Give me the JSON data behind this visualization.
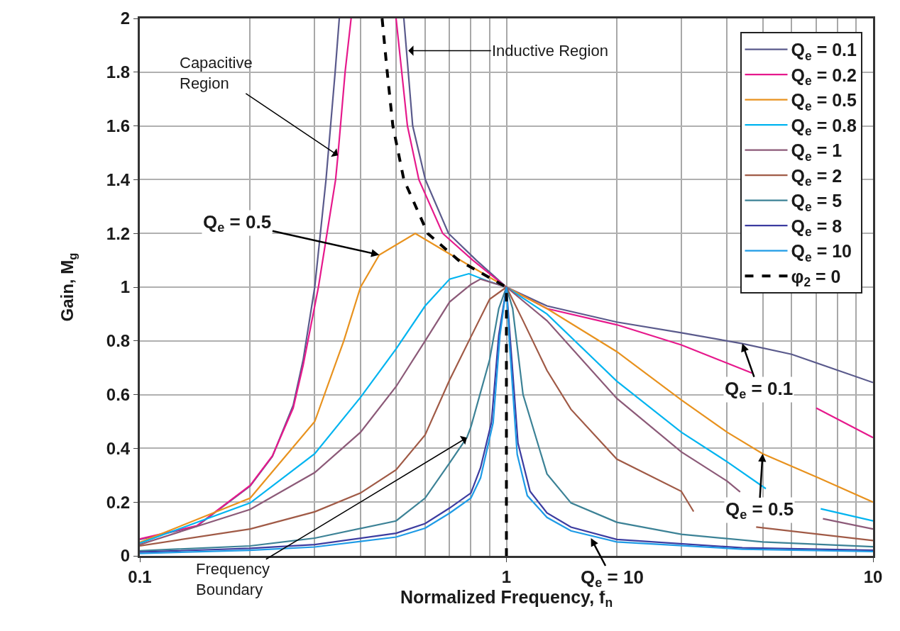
{
  "chart_data": {
    "type": "line",
    "xlabel": "Normalized Frequency, f$_{n}$",
    "ylabel": "Gain, M$_{g}$",
    "log": "x",
    "xlim": [
      0.1,
      10
    ],
    "xticks": [
      0.1,
      1,
      10
    ],
    "ylim": [
      0,
      2
    ],
    "yticks": [
      0,
      0.2,
      0.4,
      0.6,
      0.8,
      1,
      1.2,
      1.4,
      1.6,
      1.8,
      2
    ],
    "grid": true,
    "legend": "top right",
    "line_style": "solid",
    "series": [
      {
        "name": "Q$_{e}$ = 0.1",
        "color": "#5a5a8c",
        "x": [
          0.1,
          0.143,
          0.2,
          0.23,
          0.262,
          0.279,
          0.3,
          0.322,
          0.341,
          0.35,
          0.4,
          0.525,
          0.555,
          0.601,
          0.695,
          0.828,
          1,
          1.29,
          2,
          3,
          4.4,
          6,
          10
        ],
        "values": [
          0.061,
          0.11,
          0.26,
          0.37,
          0.56,
          0.73,
          1.0,
          1.4,
          1.8,
          2,
          null,
          2,
          1.6,
          1.4,
          1.2,
          1.1,
          1,
          0.93,
          0.87,
          0.83,
          0.79,
          0.75,
          0.645
        ]
      },
      {
        "name": "Q$_{e}$ = 0.2",
        "color": "#e6198c",
        "x": [
          0.1,
          0.143,
          0.2,
          0.23,
          0.262,
          0.279,
          0.307,
          0.342,
          0.347,
          0.363,
          0.377,
          0.4,
          0.5,
          0.537,
          0.577,
          0.67,
          0.81,
          1,
          1.29,
          2,
          3,
          4.68,
          5.5,
          7,
          10
        ],
        "values": [
          0.063,
          0.112,
          0.262,
          0.372,
          0.55,
          0.71,
          1.0,
          1.4,
          1.49,
          1.8,
          2,
          null,
          2,
          1.6,
          1.4,
          1.2,
          1.1,
          1,
          0.92,
          0.86,
          0.785,
          0.68,
          null,
          0.55,
          0.44
        ]
      },
      {
        "name": "Q$_{e}$ = 0.5",
        "color": "#e8921e",
        "x": [
          0.1,
          0.2,
          0.3,
          0.36,
          0.4,
          0.45,
          0.564,
          0.707,
          1,
          1.29,
          2,
          3,
          4,
          5,
          7.1,
          10
        ],
        "values": [
          0.05,
          0.215,
          0.5,
          0.8,
          1.0,
          1.12,
          1.2,
          1.12,
          1,
          0.92,
          0.76,
          0.58,
          0.46,
          0.38,
          0.29,
          0.2
        ]
      },
      {
        "name": "Q$_{e}$ = 0.8",
        "color": "#00b4f0",
        "x": [
          0.1,
          0.2,
          0.3,
          0.4,
          0.5,
          0.6,
          0.7,
          0.79,
          0.9,
          1,
          1.29,
          2,
          3,
          4,
          5.1,
          6,
          7.2,
          10
        ],
        "values": [
          0.047,
          0.197,
          0.38,
          0.59,
          0.77,
          0.93,
          1.03,
          1.05,
          1.02,
          1,
          0.9,
          0.65,
          0.46,
          0.35,
          0.25,
          null,
          0.175,
          0.13
        ]
      },
      {
        "name": "Q$_{e}$ = 1",
        "color": "#8c5a78",
        "x": [
          0.1,
          0.2,
          0.3,
          0.4,
          0.5,
          0.6,
          0.7,
          0.8,
          0.85,
          1,
          1.29,
          2,
          3,
          4,
          4.34,
          6,
          7.3,
          10
        ],
        "values": [
          0.042,
          0.173,
          0.31,
          0.46,
          0.63,
          0.8,
          0.945,
          1.01,
          1.03,
          1,
          0.875,
          0.586,
          0.387,
          0.278,
          0.238,
          null,
          0.138,
          0.1
        ]
      },
      {
        "name": "Q$_{e}$ = 2",
        "color": "#a05a46",
        "x": [
          0.1,
          0.2,
          0.3,
          0.4,
          0.5,
          0.6,
          0.7,
          0.8,
          0.9,
          1,
          1.11,
          1.29,
          1.5,
          2,
          3,
          3.24,
          4,
          4.8,
          10
        ],
        "values": [
          0.037,
          0.1,
          0.164,
          0.234,
          0.32,
          0.45,
          0.655,
          0.815,
          0.955,
          1,
          0.875,
          0.69,
          0.545,
          0.36,
          0.24,
          0.165,
          null,
          0.107,
          0.057
        ]
      },
      {
        "name": "Q$_{e}$ = 5",
        "color": "#3c8296",
        "x": [
          0.1,
          0.2,
          0.3,
          0.5,
          0.6,
          0.7,
          0.78,
          0.8,
          0.9,
          0.953,
          1,
          1.04,
          1.11,
          1.29,
          1.5,
          2,
          3,
          5,
          10
        ],
        "values": [
          0.019,
          0.037,
          0.066,
          0.13,
          0.215,
          0.346,
          0.44,
          0.48,
          0.73,
          0.92,
          1,
          0.92,
          0.6,
          0.305,
          0.197,
          0.125,
          0.08,
          0.052,
          0.034
        ]
      },
      {
        "name": "Q$_{e}$ = 8",
        "color": "#3c3ca0",
        "x": [
          0.1,
          0.2,
          0.3,
          0.5,
          0.6,
          0.7,
          0.8,
          0.85,
          0.91,
          0.953,
          1,
          1.027,
          1.075,
          1.16,
          1.29,
          1.5,
          2,
          4.4,
          10
        ],
        "values": [
          0.014,
          0.028,
          0.042,
          0.084,
          0.12,
          0.178,
          0.234,
          0.328,
          0.496,
          0.82,
          1,
          0.785,
          0.42,
          0.24,
          0.16,
          0.107,
          0.061,
          0.03,
          0.021
        ]
      },
      {
        "name": "Q$_{e}$ = 10",
        "color": "#1e9be6",
        "x": [
          0.1,
          0.2,
          0.3,
          0.5,
          0.6,
          0.7,
          0.8,
          0.85,
          0.92,
          0.96,
          1,
          1.02,
          1.07,
          1.14,
          1.29,
          1.5,
          2,
          4.4,
          10
        ],
        "values": [
          0.009,
          0.021,
          0.033,
          0.07,
          0.103,
          0.159,
          0.215,
          0.29,
          0.496,
          0.82,
          1,
          0.785,
          0.378,
          0.224,
          0.143,
          0.093,
          0.052,
          0.025,
          0.016
        ]
      },
      {
        "name": "φ$_{2}$ = 0",
        "color": "#000000",
        "line_style": "dashed",
        "x": [
          0.458,
          0.473,
          0.49,
          0.525,
          0.61,
          0.74,
          1,
          1
        ],
        "values": [
          2,
          1.8,
          1.6,
          1.4,
          1.2,
          1.1,
          1,
          0
        ]
      }
    ],
    "annotations": [
      {
        "text": "Capacitive\nRegion",
        "x": 0.347,
        "y": 1.49
      },
      {
        "text": "Inductive Region",
        "x": 0.54,
        "y": 1.88
      },
      {
        "text": "Q$_{e}$ = 0.5",
        "x": 0.45,
        "y": 1.12
      },
      {
        "text": "Frequency\nBoundary",
        "x": 0.78,
        "y": 0.44
      },
      {
        "text": "Q$_{e}$ = 0.1",
        "x": 4.4,
        "y": 0.79
      },
      {
        "text": "Q$_{e}$ = 0.5",
        "x": 5,
        "y": 0.38
      },
      {
        "text": "Q$_{e}$ = 10",
        "x": 1.7,
        "y": 0.066
      }
    ]
  }
}
